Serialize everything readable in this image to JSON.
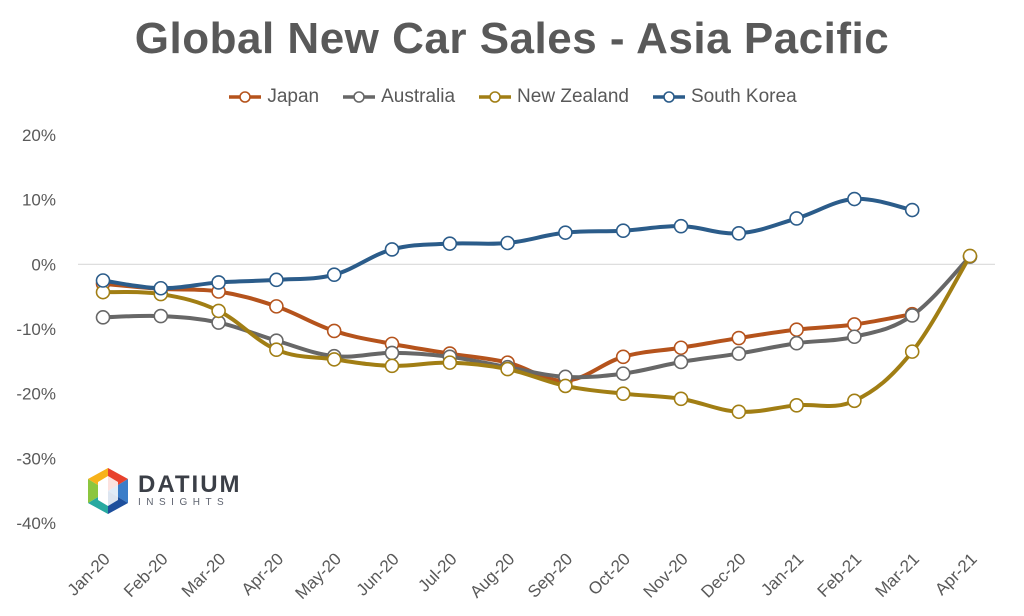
{
  "chart_data": {
    "type": "line",
    "title": "Global New Car Sales - Asia Pacific",
    "xlabel": "",
    "ylabel": "",
    "categories": [
      "Jan-20",
      "Feb-20",
      "Mar-20",
      "Apr-20",
      "May-20",
      "Jun-20",
      "Jul-20",
      "Aug-20",
      "Sep-20",
      "Oct-20",
      "Nov-20",
      "Dec-20",
      "Jan-21",
      "Feb-21",
      "Mar-21",
      "Apr-21"
    ],
    "y_ticks": [
      "20%",
      "10%",
      "0%",
      "-10%",
      "-20%",
      "-30%",
      "-40%"
    ],
    "ylim": [
      -40,
      20
    ],
    "legend_position": "top-center",
    "series": [
      {
        "name": "Japan",
        "color": "#b5531c",
        "values": [
          -3.0,
          -3.8,
          -4.2,
          -6.5,
          -10.3,
          -12.3,
          -13.8,
          -15.2,
          -18.0,
          -14.3,
          -12.9,
          -11.4,
          -10.1,
          -9.3,
          -7.7,
          null
        ]
      },
      {
        "name": "Australia",
        "color": "#676767",
        "values": [
          -8.2,
          -8.0,
          -9.0,
          -11.8,
          -14.2,
          -13.7,
          -14.3,
          -15.9,
          -17.4,
          -16.9,
          -15.1,
          -13.8,
          -12.2,
          -11.2,
          -7.9,
          1.2
        ]
      },
      {
        "name": "New Zealand",
        "color": "#a17e14",
        "values": [
          -4.3,
          -4.6,
          -7.2,
          -13.2,
          -14.7,
          -15.7,
          -15.2,
          -16.2,
          -18.8,
          -20.0,
          -20.8,
          -22.8,
          -21.8,
          -21.1,
          -13.5,
          1.3
        ]
      },
      {
        "name": "South Korea",
        "color": "#2b5c8a",
        "values": [
          -2.5,
          -3.7,
          -2.8,
          -2.4,
          -1.6,
          2.3,
          3.2,
          3.3,
          4.9,
          5.2,
          5.9,
          4.8,
          7.1,
          10.1,
          8.4,
          null
        ]
      }
    ]
  },
  "logo": {
    "name": "DATIUM",
    "sub": "INSIGHTS"
  }
}
